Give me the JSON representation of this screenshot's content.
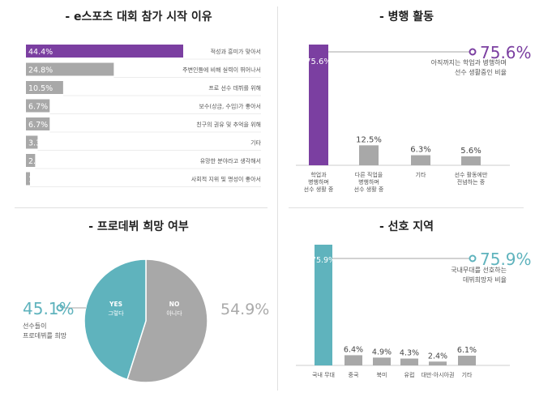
{
  "colors": {
    "purple": "#7b3fa1",
    "teal": "#5fb3bd",
    "gray": "#a8a8a8",
    "label": "#555555"
  },
  "panels": {
    "reasons_title": "- e스포츠 대회 참가 시작 이유",
    "activity_title": "- 병행 활동",
    "hope_title": "- 프로데뷔 희망 여부",
    "region_title": "- 선호 지역"
  },
  "chart_data": [
    {
      "type": "bar",
      "orientation": "horizontal",
      "title": "- e스포츠 대회 참가 시작 이유",
      "categories": [
        "적성과 흥미가 맞아서",
        "주변인들에 비해 실력이 뛰어나서",
        "프로 선수 데뷔를 위해",
        "보수(상금, 수입)가 좋아서",
        "친구의 권유 및 추억을 위해",
        "기타",
        "유망한 분야라고 생각해서",
        "사회적 지위 및 명성이 좋아서"
      ],
      "values": [
        44.4,
        24.8,
        10.5,
        6.7,
        6.7,
        3.3,
        2.6,
        1.0
      ],
      "value_labels": [
        "44.4%",
        "24.8%",
        "10.5%",
        "6.7%",
        "6.7%",
        "3.3%",
        "2.6%",
        "1.0%"
      ],
      "highlight_index": 0
    },
    {
      "type": "bar",
      "title": "- 병행 활동",
      "categories": [
        "학업과 병행하며 선수 생활 중",
        "다른 직업을 병행하며 선수 생활 중",
        "기타",
        "선수 활동에만 전념하는 중"
      ],
      "values": [
        75.6,
        12.5,
        6.3,
        5.6
      ],
      "value_labels": [
        "75.6%",
        "12.5%",
        "6.3%",
        "5.6%"
      ],
      "highlight_index": 0,
      "callout": {
        "value": "75.6%",
        "text": "아직까지는 학업과 병행하며 선수 생활중인 비율"
      }
    },
    {
      "type": "pie",
      "title": "- 프로데뷔 희망 여부",
      "slices": [
        {
          "label": "YES",
          "sublabel": "그렇다",
          "value": 45.1
        },
        {
          "label": "NO",
          "sublabel": "아니다",
          "value": 54.9
        }
      ],
      "left_callout": {
        "value": "45.1%",
        "text": "선수들이 프로데뷔를 희망"
      },
      "right_value": "54.9%"
    },
    {
      "type": "bar",
      "title": "- 선호 지역",
      "categories": [
        "국내 무대",
        "중국",
        "북미",
        "유럽",
        "대만·아시아권",
        "기타"
      ],
      "values": [
        75.9,
        6.4,
        4.9,
        4.3,
        2.4,
        6.1
      ],
      "value_labels": [
        "75.9%",
        "6.4%",
        "4.9%",
        "4.3%",
        "2.4%",
        "6.1%"
      ],
      "highlight_index": 0,
      "callout": {
        "value": "75.9%",
        "text": "국내무대를 선호하는 데뷔희망자 비율"
      }
    }
  ]
}
